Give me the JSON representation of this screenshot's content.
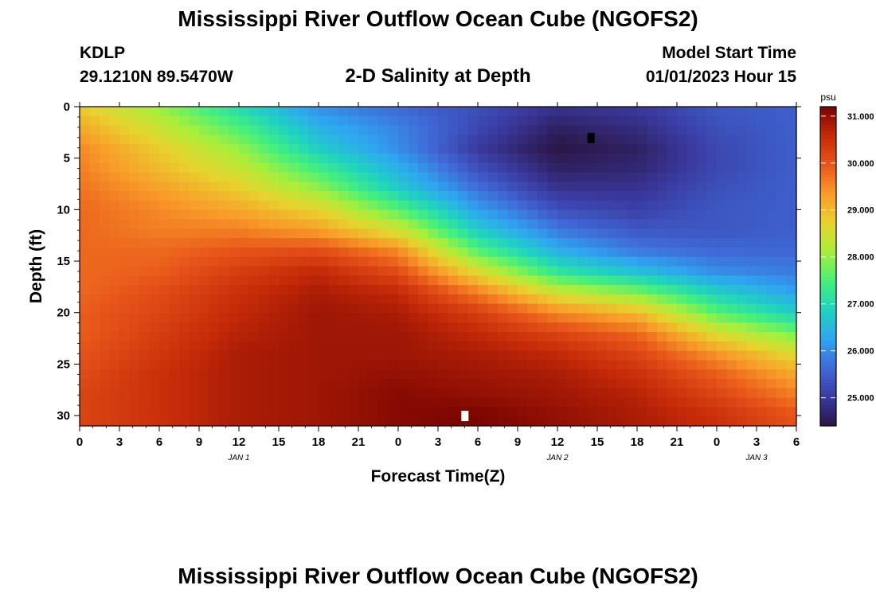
{
  "header": {
    "title": "Mississippi River Outflow Ocean Cube (NGOFS2)",
    "station_id": "KDLP",
    "coordinates": "29.1210N  89.5470W",
    "subtitle": "2-D Salinity at Depth",
    "model_start_label": "Model Start Time",
    "model_start_value": "01/01/2023 Hour 15"
  },
  "footer": {
    "title": "Mississippi River Outflow Ocean Cube (NGOFS2)"
  },
  "chart_data": {
    "type": "heatmap",
    "title": "2-D Salinity at Depth",
    "xlabel": "Forecast Time(Z)",
    "ylabel": "Depth (ft)",
    "x_ticks": [
      "0",
      "3",
      "6",
      "9",
      "12",
      "15",
      "18",
      "21",
      "0",
      "3",
      "6",
      "9",
      "12",
      "15",
      "18",
      "21",
      "0",
      "3",
      "6"
    ],
    "x_day_labels": [
      {
        "label": "JAN 1",
        "at_hour": 12
      },
      {
        "label": "JAN 2",
        "at_hour": 36
      },
      {
        "label": "JAN 3",
        "at_hour": 51
      }
    ],
    "xlim": [
      0,
      54
    ],
    "y_ticks": [
      0,
      5,
      10,
      15,
      20,
      25,
      30
    ],
    "ylim": [
      0,
      31
    ],
    "y_inverted": true,
    "colorbar": {
      "unit": "psu",
      "range": [
        24.4,
        31.2
      ],
      "tick_labels": [
        "31.000",
        "30.000",
        "29.000",
        "28.000",
        "27.000",
        "26.000",
        "25.000"
      ],
      "tick_values": [
        31,
        30,
        29,
        28,
        27,
        26,
        25
      ]
    },
    "salinity_psu": {
      "x_hours": [
        0,
        6,
        12,
        18,
        24,
        30,
        36,
        42,
        48,
        54
      ],
      "depth_ft": [
        0,
        2,
        4,
        6,
        8,
        10,
        12,
        14,
        16,
        18,
        20,
        22,
        24,
        26,
        28,
        30
      ],
      "values": [
        [
          28.8,
          28.0,
          27.0,
          26.0,
          25.6,
          25.3,
          24.9,
          25.0,
          25.4,
          25.5
        ],
        [
          29.2,
          28.4,
          27.5,
          26.4,
          25.9,
          25.2,
          24.6,
          24.8,
          25.3,
          25.5
        ],
        [
          29.5,
          28.8,
          28.0,
          26.8,
          26.0,
          25.0,
          24.4,
          24.6,
          25.2,
          25.5
        ],
        [
          29.6,
          29.0,
          28.4,
          27.4,
          26.4,
          25.3,
          24.6,
          24.7,
          25.2,
          25.5
        ],
        [
          29.7,
          29.3,
          28.8,
          28.0,
          26.8,
          25.7,
          24.9,
          24.9,
          25.3,
          25.5
        ],
        [
          29.8,
          29.5,
          29.2,
          28.7,
          27.6,
          26.2,
          25.3,
          25.1,
          25.4,
          25.5
        ],
        [
          29.8,
          29.6,
          29.6,
          29.3,
          28.5,
          26.8,
          25.8,
          25.4,
          25.4,
          25.5
        ],
        [
          29.8,
          29.8,
          30.0,
          30.1,
          29.5,
          27.6,
          26.4,
          25.8,
          25.6,
          25.6
        ],
        [
          29.8,
          29.9,
          30.3,
          30.6,
          30.1,
          28.6,
          27.2,
          26.6,
          26.0,
          25.8
        ],
        [
          29.8,
          30.1,
          30.5,
          30.8,
          30.6,
          29.6,
          28.4,
          27.8,
          26.8,
          26.2
        ],
        [
          29.9,
          30.2,
          30.6,
          30.9,
          30.8,
          30.3,
          29.5,
          29.0,
          27.6,
          26.8
        ],
        [
          29.9,
          30.3,
          30.7,
          30.9,
          30.9,
          30.6,
          30.2,
          29.8,
          28.6,
          27.8
        ],
        [
          30.0,
          30.4,
          30.8,
          30.9,
          30.9,
          30.8,
          30.6,
          30.2,
          29.4,
          28.6
        ],
        [
          30.1,
          30.5,
          30.8,
          30.9,
          31.0,
          30.9,
          30.8,
          30.5,
          29.9,
          29.2
        ],
        [
          30.2,
          30.5,
          30.8,
          30.9,
          31.1,
          31.0,
          30.9,
          30.7,
          30.2,
          29.6
        ],
        [
          30.2,
          30.5,
          30.8,
          30.9,
          31.1,
          31.2,
          31.0,
          30.8,
          30.5,
          30.0
        ]
      ]
    },
    "markers": [
      {
        "color": "#000000",
        "x_hour": 38.5,
        "depth_ft": 3
      },
      {
        "color": "#ffffff",
        "x_hour": 29,
        "depth_ft": 30
      }
    ],
    "colors": {
      "scale": [
        "#2a1545",
        "#3a3aa0",
        "#3f6ad8",
        "#2ea6f0",
        "#1fd3c0",
        "#46f07a",
        "#a8ef3a",
        "#e8d32e",
        "#f99b2a",
        "#e8561a",
        "#c52a08",
        "#7a0402"
      ]
    }
  }
}
